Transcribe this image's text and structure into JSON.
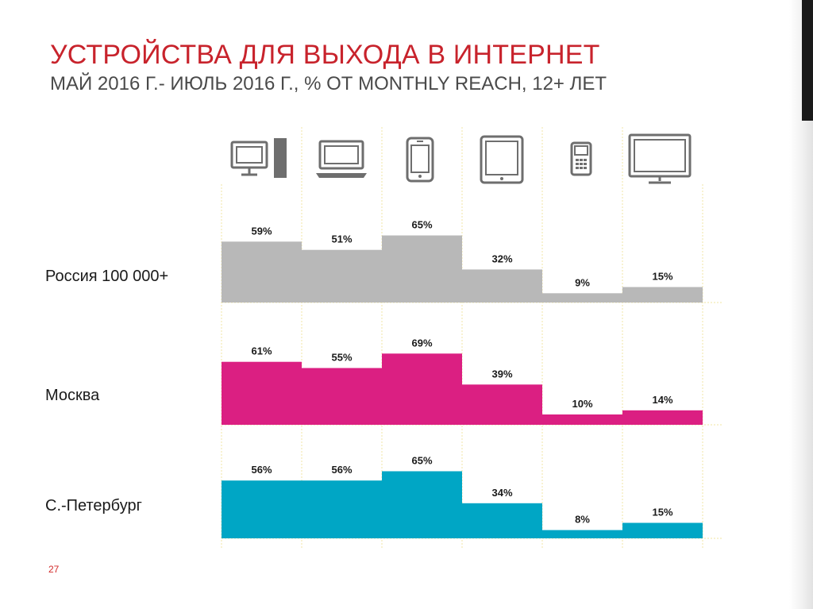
{
  "slide": {
    "title": "УСТРОЙСТВА ДЛЯ ВЫХОДА В ИНТЕРНЕТ",
    "subtitle": "МАЙ 2016 Г.- ИЮЛЬ 2016 Г., % ОТ MONTHLY REACH, 12+ ЛЕТ",
    "page_number": "27",
    "accent_color": "#d22b2b",
    "title_color": "#c8232c",
    "gridline_color": "#f3e9b5",
    "edge_bar_color": "#1a1a1a"
  },
  "chart_data": {
    "type": "bar",
    "title": "УСТРОЙСТВА ДЛЯ ВЫХОДА В ИНТЕРНЕТ",
    "subtitle": "МАЙ 2016 Г.- ИЮЛЬ 2016 Г., % ОТ MONTHLY REACH, 12+ ЛЕТ",
    "categories_icons": [
      "desktop-computer-icon",
      "laptop-icon",
      "smartphone-icon",
      "tablet-icon",
      "mobile-phone-icon",
      "tv-icon"
    ],
    "unit": "%",
    "ylim": [
      0,
      100
    ],
    "series": [
      {
        "name": "Россия 100 000+",
        "color": "#b8b8b8",
        "values": [
          59,
          51,
          65,
          32,
          9,
          15
        ],
        "labels": [
          "59%",
          "51%",
          "65%",
          "32%",
          "9%",
          "15%"
        ]
      },
      {
        "name": "Москва",
        "color": "#db1f82",
        "values": [
          61,
          55,
          69,
          39,
          10,
          14
        ],
        "labels": [
          "61%",
          "55%",
          "69%",
          "39%",
          "10%",
          "14%"
        ]
      },
      {
        "name": "С.-Петербург",
        "color": "#00a6c5",
        "values": [
          56,
          56,
          65,
          34,
          8,
          15
        ],
        "labels": [
          "56%",
          "56%",
          "65%",
          "34%",
          "8%",
          "15%"
        ]
      }
    ]
  }
}
